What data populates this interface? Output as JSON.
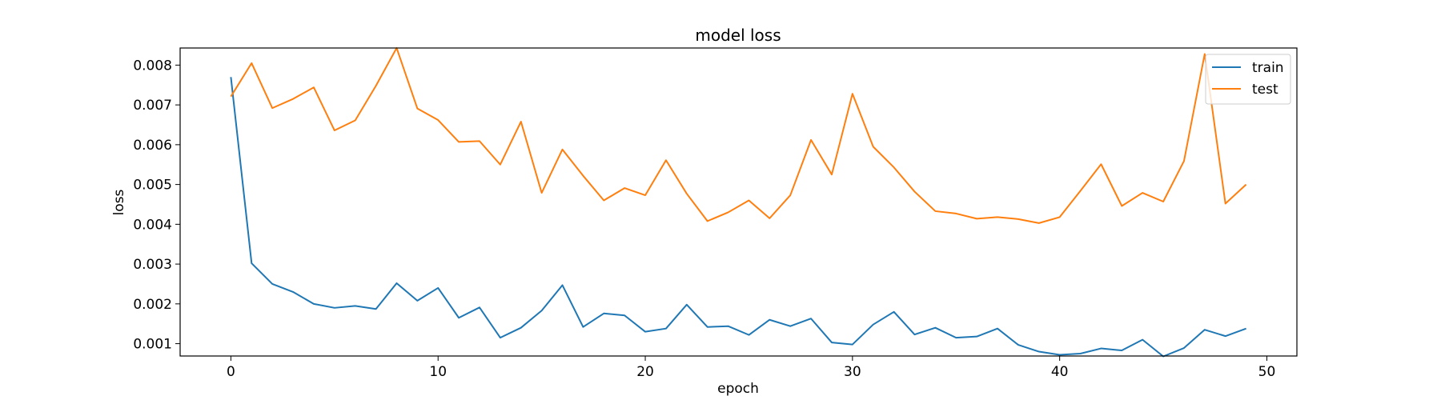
{
  "chart_data": {
    "type": "line",
    "title": "model loss",
    "xlabel": "epoch",
    "ylabel": "loss",
    "xlim": [
      -2.45,
      51.45
    ],
    "ylim": [
      0.00069,
      0.00843
    ],
    "xticks": [
      0,
      10,
      20,
      30,
      40,
      50
    ],
    "yticks": [
      0.001,
      0.002,
      0.003,
      0.004,
      0.005,
      0.006,
      0.007,
      0.008
    ],
    "ytick_labels": [
      "0.001",
      "0.002",
      "0.003",
      "0.004",
      "0.005",
      "0.006",
      "0.007",
      "0.008"
    ],
    "legend_position": "top-right",
    "grid": false,
    "x": [
      0,
      1,
      2,
      3,
      4,
      5,
      6,
      7,
      8,
      9,
      10,
      11,
      12,
      13,
      14,
      15,
      16,
      17,
      18,
      19,
      20,
      21,
      22,
      23,
      24,
      25,
      26,
      27,
      28,
      29,
      30,
      31,
      32,
      33,
      34,
      35,
      36,
      37,
      38,
      39,
      40,
      41,
      42,
      43,
      44,
      45,
      46,
      47,
      48,
      49
    ],
    "series": [
      {
        "name": "train",
        "color": "#1f77b4",
        "values": [
          0.0077,
          0.00302,
          0.0025,
          0.0023,
          0.002,
          0.0019,
          0.00195,
          0.00187,
          0.00252,
          0.00208,
          0.0024,
          0.00165,
          0.00191,
          0.00115,
          0.0014,
          0.00183,
          0.00247,
          0.00142,
          0.00176,
          0.00171,
          0.0013,
          0.00138,
          0.00198,
          0.00142,
          0.00144,
          0.00122,
          0.0016,
          0.00144,
          0.00163,
          0.00103,
          0.00098,
          0.00148,
          0.0018,
          0.00123,
          0.0014,
          0.00115,
          0.00118,
          0.00138,
          0.00097,
          0.0008,
          0.00072,
          0.00075,
          0.00088,
          0.00083,
          0.0011,
          0.00068,
          0.00089,
          0.00135,
          0.00119,
          0.00138
        ]
      },
      {
        "name": "test",
        "color": "#ff7f0e",
        "values": [
          0.00721,
          0.00805,
          0.00692,
          0.00715,
          0.00744,
          0.00636,
          0.00661,
          0.00748,
          0.00843,
          0.00691,
          0.00662,
          0.00607,
          0.00609,
          0.0055,
          0.00658,
          0.00479,
          0.00588,
          0.00522,
          0.0046,
          0.00491,
          0.00473,
          0.00561,
          0.00477,
          0.00408,
          0.0043,
          0.0046,
          0.00415,
          0.00473,
          0.00612,
          0.00525,
          0.00728,
          0.00595,
          0.00543,
          0.00482,
          0.00433,
          0.00427,
          0.00414,
          0.00418,
          0.00413,
          0.00403,
          0.00418,
          0.00484,
          0.00551,
          0.00446,
          0.00479,
          0.00457,
          0.00559,
          0.00828,
          0.00452,
          0.005
        ]
      }
    ]
  }
}
